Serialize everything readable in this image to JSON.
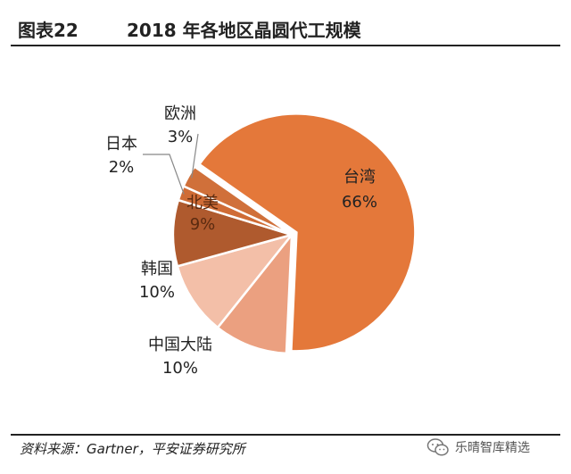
{
  "header": {
    "figure_label": "图表22",
    "title": "2018 年各地区晶圆代工规模"
  },
  "chart_data": {
    "type": "pie",
    "title": "2018 年各地区晶圆代工规模",
    "slices": [
      {
        "name": "台湾",
        "value": 66,
        "label": "66%",
        "color": "#E4783A",
        "exploded": true
      },
      {
        "name": "中国大陆",
        "value": 10,
        "label": "10%",
        "color": "#EBA080"
      },
      {
        "name": "韩国",
        "value": 10,
        "label": "10%",
        "color": "#F3BFA8"
      },
      {
        "name": "北美",
        "value": 9,
        "label": "9%",
        "color": "#AF5A2E"
      },
      {
        "name": "日本",
        "value": 2,
        "label": "2%",
        "color": "#CF6C36"
      },
      {
        "name": "欧洲",
        "value": 3,
        "label": "3%",
        "color": "#D0703A"
      }
    ]
  },
  "footer": {
    "source": "资料来源：Gartner，平安证券研究所",
    "watermark": "乐晴智库精选"
  }
}
